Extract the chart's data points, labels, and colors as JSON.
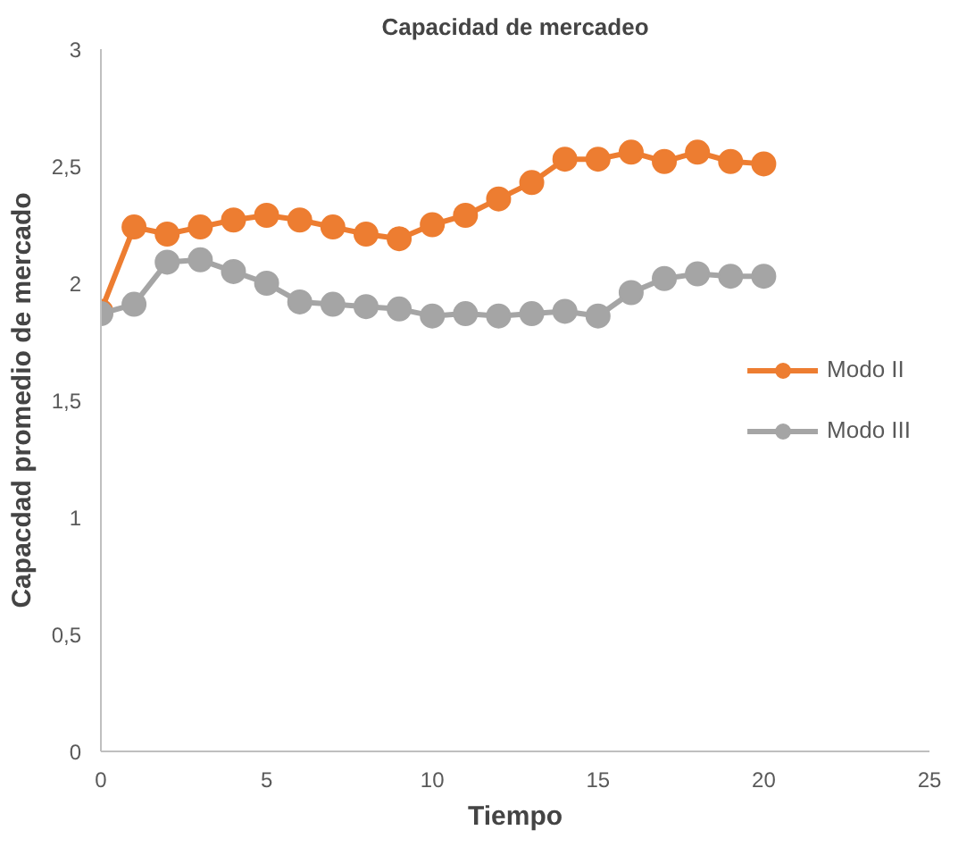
{
  "chart_data": {
    "type": "line",
    "title": "Capacidad de mercadeo",
    "xlabel": "Tiempo",
    "ylabel": "Capacdad promedio de mercado",
    "x": [
      0,
      1,
      2,
      3,
      4,
      5,
      6,
      7,
      8,
      9,
      10,
      11,
      12,
      13,
      14,
      15,
      16,
      17,
      18,
      19,
      20
    ],
    "series": [
      {
        "name": "Modo II",
        "color": "#ed7d31",
        "values": [
          1.88,
          2.24,
          2.21,
          2.24,
          2.27,
          2.29,
          2.27,
          2.24,
          2.21,
          2.19,
          2.25,
          2.29,
          2.36,
          2.43,
          2.53,
          2.53,
          2.56,
          2.52,
          2.56,
          2.52,
          2.51
        ]
      },
      {
        "name": "Modo III",
        "color": "#a5a5a5",
        "values": [
          1.87,
          1.91,
          2.09,
          2.1,
          2.05,
          2.0,
          1.92,
          1.91,
          1.9,
          1.89,
          1.86,
          1.87,
          1.86,
          1.87,
          1.88,
          1.86,
          1.96,
          2.02,
          2.04,
          2.03,
          2.03
        ]
      }
    ],
    "xlim": [
      0,
      25
    ],
    "xticks": [
      0,
      5,
      10,
      15,
      20,
      25
    ],
    "ylim": [
      0,
      3
    ],
    "yticks": [
      0,
      {
        "value": 0.5,
        "label": "0,5"
      },
      1,
      {
        "value": 1.5,
        "label": "1,5"
      },
      2,
      {
        "value": 2.5,
        "label": "2,5"
      },
      3
    ],
    "grid": false,
    "legend": "right",
    "marker": "circle",
    "line_style": "solid"
  }
}
